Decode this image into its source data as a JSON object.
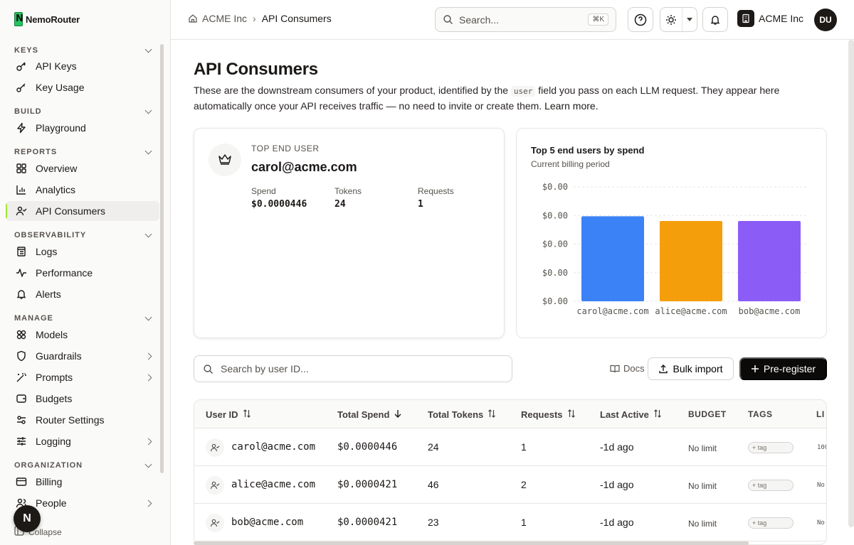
{
  "app": {
    "name": "NemoRouter"
  },
  "sidebar": {
    "sections": [
      {
        "label": "KEYS",
        "items": [
          {
            "label": "API Keys"
          },
          {
            "label": "Key Usage"
          }
        ]
      },
      {
        "label": "BUILD",
        "items": [
          {
            "label": "Playground"
          }
        ]
      },
      {
        "label": "REPORTS",
        "items": [
          {
            "label": "Overview"
          },
          {
            "label": "Analytics"
          },
          {
            "label": "API Consumers",
            "active": true
          }
        ]
      },
      {
        "label": "OBSERVABILITY",
        "items": [
          {
            "label": "Logs"
          },
          {
            "label": "Performance"
          },
          {
            "label": "Alerts"
          }
        ]
      },
      {
        "label": "MANAGE",
        "items": [
          {
            "label": "Models"
          },
          {
            "label": "Guardrails"
          },
          {
            "label": "Prompts"
          },
          {
            "label": "Budgets"
          },
          {
            "label": "Router Settings"
          },
          {
            "label": "Logging"
          }
        ]
      },
      {
        "label": "ORGANIZATION",
        "items": [
          {
            "label": "Billing"
          },
          {
            "label": "People"
          }
        ]
      }
    ],
    "collapse_label": "Collapse",
    "floating_avatar": "N"
  },
  "header": {
    "breadcrumb": {
      "home": "ACME Inc",
      "current": "API Consumers"
    },
    "search": {
      "placeholder": "Search...",
      "shortcut": "⌘K"
    },
    "org_name": "ACME Inc",
    "user_initials": "DU"
  },
  "page": {
    "title": "API Consumers",
    "description_pre": "These are the downstream consumers of your product, identified by the ",
    "description_code": "user",
    "description_post": " field you pass on each LLM request. They appear here automatically once your API receives traffic — no need to invite or create them. ",
    "learn_more": "Learn more."
  },
  "top_user": {
    "label": "TOP END USER",
    "email": "carol@acme.com",
    "spend_label": "Spend",
    "spend": "$0.0000446",
    "tokens_label": "Tokens",
    "tokens": "24",
    "requests_label": "Requests",
    "requests": "1"
  },
  "chart_data": {
    "type": "bar",
    "title": "Top 5 end users by spend",
    "subtitle": "Current billing period",
    "categories": [
      "carol@acme.com",
      "alice@acme.com",
      "bob@acme.com"
    ],
    "values": [
      4.46e-05,
      4.21e-05,
      4.21e-05
    ],
    "colors": [
      "#3b82f6",
      "#f59e0b",
      "#8b5cf6"
    ],
    "y_ticks": [
      "$0.00",
      "$0.00",
      "$0.00",
      "$0.00",
      "$0.00"
    ],
    "ylim": [
      0,
      6e-05
    ],
    "grid": true
  },
  "toolbar": {
    "search_placeholder": "Search by user ID...",
    "docs_label": "Docs",
    "bulk_import_label": "Bulk import",
    "preregister_label": "Pre-register"
  },
  "table": {
    "columns": [
      "User ID",
      "Total Spend",
      "Total Tokens",
      "Requests",
      "Last Active",
      "BUDGET",
      "TAGS",
      "LI"
    ],
    "rows": [
      {
        "user": "carol@acme.com",
        "spend": "$0.0000446",
        "tokens": "24",
        "requests": "1",
        "last_active": "-1d ago",
        "budget": "No limit",
        "tag": "+ tag",
        "limit": "100"
      },
      {
        "user": "alice@acme.com",
        "spend": "$0.0000421",
        "tokens": "46",
        "requests": "2",
        "last_active": "-1d ago",
        "budget": "No limit",
        "tag": "+ tag",
        "limit": "No"
      },
      {
        "user": "bob@acme.com",
        "spend": "$0.0000421",
        "tokens": "23",
        "requests": "1",
        "last_active": "-1d ago",
        "budget": "No limit",
        "tag": "+ tag",
        "limit": "No"
      }
    ]
  }
}
